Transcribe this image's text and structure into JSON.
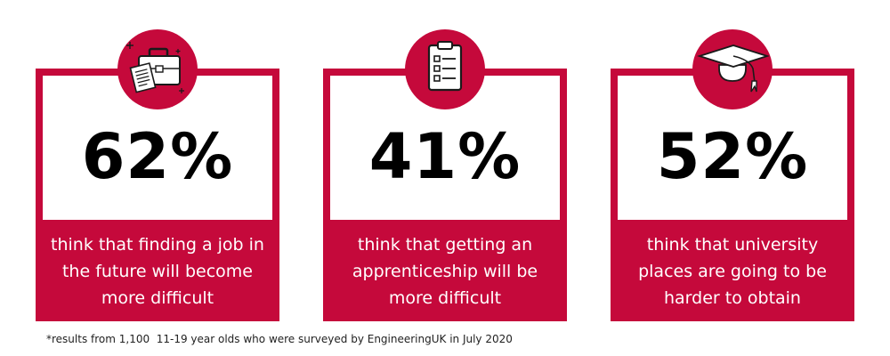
{
  "accent_color": "#c5093b",
  "stats": [
    {
      "percent": "62%",
      "lines": [
        "think that finding a job in",
        "the future will become",
        "more difficult"
      ],
      "icon": "briefcase-icon"
    },
    {
      "percent": "41%",
      "lines": [
        "think that getting an",
        "apprenticeship will be",
        "more difficult"
      ],
      "icon": "clipboard-checklist-icon"
    },
    {
      "percent": "52%",
      "lines": [
        "think that university",
        "places are going to be",
        "harder to obtain"
      ],
      "icon": "graduation-cap-icon"
    }
  ],
  "footnote": "*results from 1,100  11-19 year olds who were surveyed by EngineeringUK in July 2020"
}
